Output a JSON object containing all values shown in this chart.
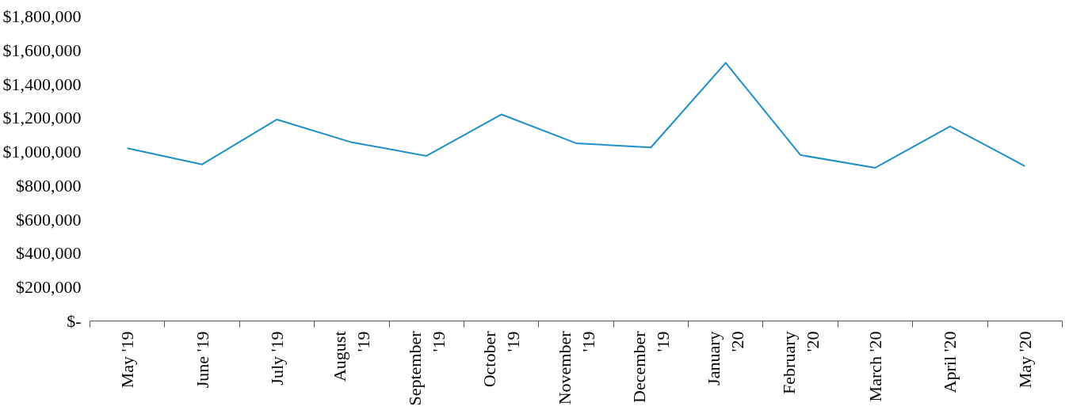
{
  "chart_data": {
    "type": "line",
    "categories": [
      "May '19",
      "June '19",
      "July '19",
      "August '19",
      "September '19",
      "October '19",
      "November '19",
      "December '19",
      "January '20",
      "February '20",
      "March '20",
      "April '20",
      "May '20"
    ],
    "series": [
      {
        "color": "#1f8fc8",
        "values": [
          1020000,
          925000,
          1190000,
          1055000,
          975000,
          1220000,
          1050000,
          1025000,
          1525000,
          980000,
          905000,
          1150000,
          915000
        ]
      }
    ],
    "ylim": [
      0,
      1800000
    ],
    "yticks": [
      {
        "value": 0,
        "label": "$-"
      },
      {
        "value": 200000,
        "label": "$200,000"
      },
      {
        "value": 400000,
        "label": "$400,000"
      },
      {
        "value": 600000,
        "label": "$600,000"
      },
      {
        "value": 800000,
        "label": "$800,000"
      },
      {
        "value": 1000000,
        "label": "$1,000,000"
      },
      {
        "value": 1200000,
        "label": "$1,200,000"
      },
      {
        "value": 1400000,
        "label": "$1,400,000"
      },
      {
        "value": 1600000,
        "label": "$1,600,000"
      },
      {
        "value": 1800000,
        "label": "$1,800,000"
      }
    ],
    "grid": false,
    "marker": "none",
    "line_style": "solid"
  }
}
